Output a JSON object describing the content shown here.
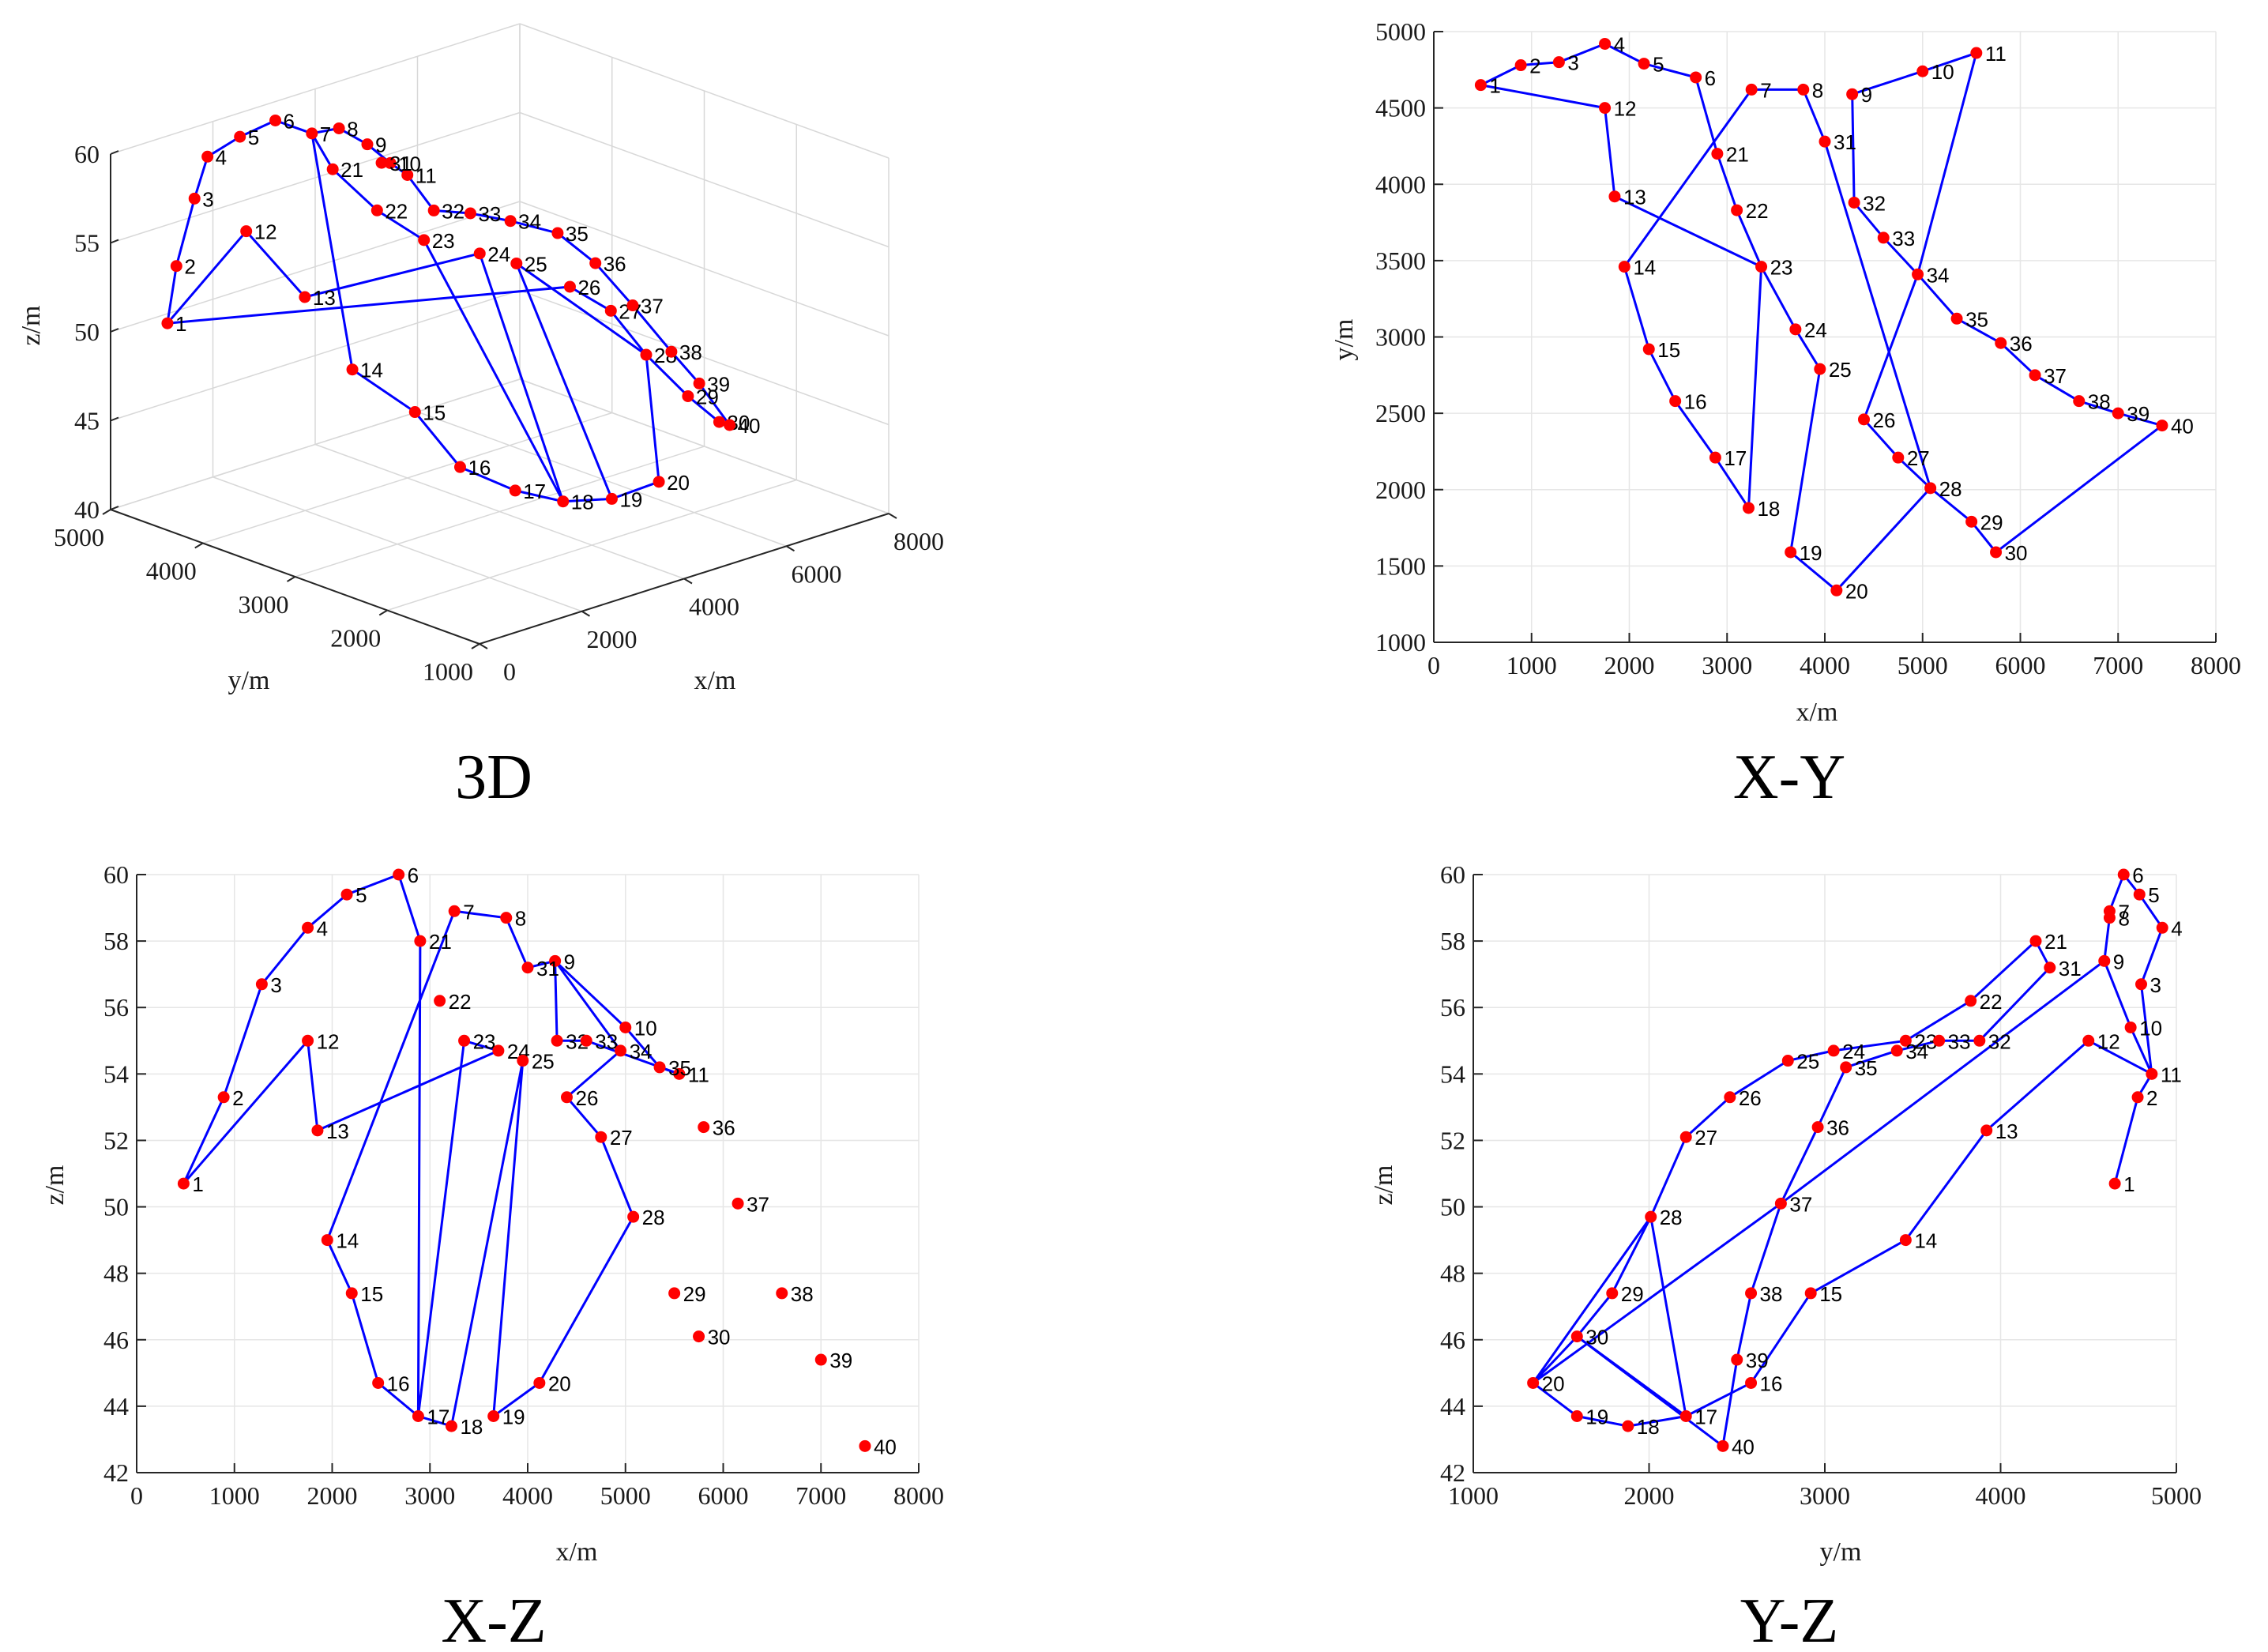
{
  "colors": {
    "line": "#0000ff",
    "marker": "#ff0000",
    "axis": "#262626",
    "grid": "#e6e6e6"
  },
  "chart_data": [
    {
      "id": "panel-3d",
      "type": "scatter",
      "title": "3D",
      "xlabel": "x/m",
      "ylabel": "y/m",
      "zlabel": "z/m",
      "xlim": [
        0,
        8000
      ],
      "ylim": [
        1000,
        5000
      ],
      "zlim": [
        40,
        60
      ],
      "xticks": [
        "0",
        "2000",
        "4000",
        "6000",
        "8000"
      ],
      "yticks": [
        "1000",
        "2000",
        "3000",
        "4000",
        "5000"
      ],
      "zticks": [
        "40",
        "45",
        "50",
        "55",
        "60"
      ]
    },
    {
      "id": "panel-xy",
      "type": "scatter",
      "title": "X-Y",
      "xlabel": "x/m",
      "ylabel": "y/m",
      "xlim": [
        0,
        8000
      ],
      "ylim": [
        1000,
        5000
      ],
      "xticks": [
        "0",
        "1000",
        "2000",
        "3000",
        "4000",
        "5000",
        "6000",
        "7000",
        "8000"
      ],
      "yticks": [
        "1000",
        "1500",
        "2000",
        "2500",
        "3000",
        "3500",
        "4000",
        "4500",
        "5000"
      ]
    },
    {
      "id": "panel-xz",
      "type": "scatter",
      "title": "X-Z",
      "xlabel": "x/m",
      "ylabel": "z/m",
      "xlim": [
        0,
        8000
      ],
      "ylim": [
        42,
        60
      ],
      "xticks": [
        "0",
        "1000",
        "2000",
        "3000",
        "4000",
        "5000",
        "6000",
        "7000",
        "8000"
      ],
      "yticks": [
        "42",
        "44",
        "46",
        "48",
        "50",
        "52",
        "54",
        "56",
        "58",
        "60"
      ]
    },
    {
      "id": "panel-yz",
      "type": "scatter",
      "title": "Y-Z",
      "xlabel": "y/m",
      "ylabel": "z/m",
      "xlim": [
        1000,
        5000
      ],
      "ylim": [
        42,
        60
      ],
      "xticks": [
        "1000",
        "2000",
        "3000",
        "4000",
        "5000"
      ],
      "yticks": [
        "42",
        "44",
        "46",
        "48",
        "50",
        "52",
        "54",
        "56",
        "58",
        "60"
      ]
    }
  ],
  "points": {
    "labels": [
      "1",
      "2",
      "3",
      "4",
      "5",
      "6",
      "7",
      "8",
      "9",
      "10",
      "11",
      "12",
      "13",
      "14",
      "15",
      "16",
      "17",
      "18",
      "19",
      "20",
      "21",
      "22",
      "23",
      "24",
      "25",
      "26",
      "27",
      "28",
      "29",
      "30",
      "31",
      "32",
      "33",
      "34",
      "35",
      "36",
      "37",
      "38",
      "39",
      "40"
    ],
    "x": [
      480,
      890,
      1280,
      1750,
      2150,
      2680,
      3250,
      3780,
      4280,
      5000,
      5550,
      1750,
      1850,
      1950,
      2200,
      2470,
      2880,
      3220,
      3650,
      4120,
      2900,
      3100,
      3350,
      3700,
      3950,
      4400,
      4750,
      5080,
      5500,
      5750,
      4000,
      4300,
      4600,
      4950,
      5350,
      5800,
      6150,
      6600,
      7000,
      7450
    ],
    "y": [
      4650,
      4780,
      4800,
      4920,
      4790,
      4700,
      4620,
      4620,
      4590,
      4740,
      4860,
      4500,
      3920,
      3460,
      2920,
      2580,
      2210,
      1880,
      1590,
      1340,
      4200,
      3830,
      3460,
      3050,
      2790,
      2460,
      2210,
      2010,
      1790,
      1590,
      4280,
      3880,
      3650,
      3410,
      3120,
      2960,
      2750,
      2580,
      2500,
      2420
    ],
    "z": [
      50.7,
      53.3,
      56.7,
      58.4,
      59.4,
      60.0,
      58.9,
      58.7,
      57.4,
      55.4,
      54.0,
      55.0,
      52.3,
      49.0,
      47.4,
      44.7,
      43.7,
      43.4,
      43.7,
      44.7,
      58.0,
      56.2,
      55.0,
      54.7,
      54.4,
      53.3,
      52.1,
      49.7,
      47.4,
      46.1,
      57.2,
      55.0,
      55.0,
      54.7,
      54.2,
      52.4,
      50.1,
      47.4,
      45.4,
      42.8
    ]
  },
  "xy_order": [
    1,
    2,
    3,
    4,
    5,
    6,
    21,
    22,
    23,
    24,
    25,
    19,
    20,
    28,
    29,
    30,
    40,
    39,
    38,
    37,
    36,
    35,
    34,
    33,
    32,
    9,
    10,
    11,
    34,
    26,
    27,
    28,
    31,
    8,
    7,
    14,
    15,
    16,
    17,
    18,
    23,
    13,
    12,
    1
  ],
  "xz_order": [
    1,
    12,
    13,
    24,
    23,
    17,
    16,
    15,
    14,
    7,
    8,
    31,
    9,
    32,
    33,
    11,
    35,
    10,
    9,
    34,
    26,
    27,
    28,
    20,
    19,
    25,
    18,
    17,
    21,
    6,
    5,
    4,
    3,
    2,
    1
  ],
  "yz_order": [
    1,
    2,
    11,
    12,
    13,
    14,
    15,
    16,
    17,
    18,
    19,
    20,
    30,
    17,
    28,
    29,
    30,
    40,
    39,
    38,
    37,
    36,
    35,
    34,
    33,
    32,
    31,
    21,
    22,
    23,
    24,
    25,
    26,
    27,
    28,
    20,
    37,
    9,
    10,
    11,
    3,
    4,
    5,
    6,
    7,
    8,
    9,
    10
  ],
  "d3_order": [
    1,
    2,
    3,
    4,
    5,
    6,
    7,
    8,
    9,
    10,
    11,
    32,
    33,
    34,
    35,
    36,
    37,
    38,
    39,
    40,
    30,
    29,
    28,
    20,
    19,
    18,
    17,
    16,
    15,
    14,
    7,
    21,
    22,
    23,
    18,
    24,
    13,
    12,
    1,
    26,
    27,
    28,
    25,
    19,
    20
  ]
}
